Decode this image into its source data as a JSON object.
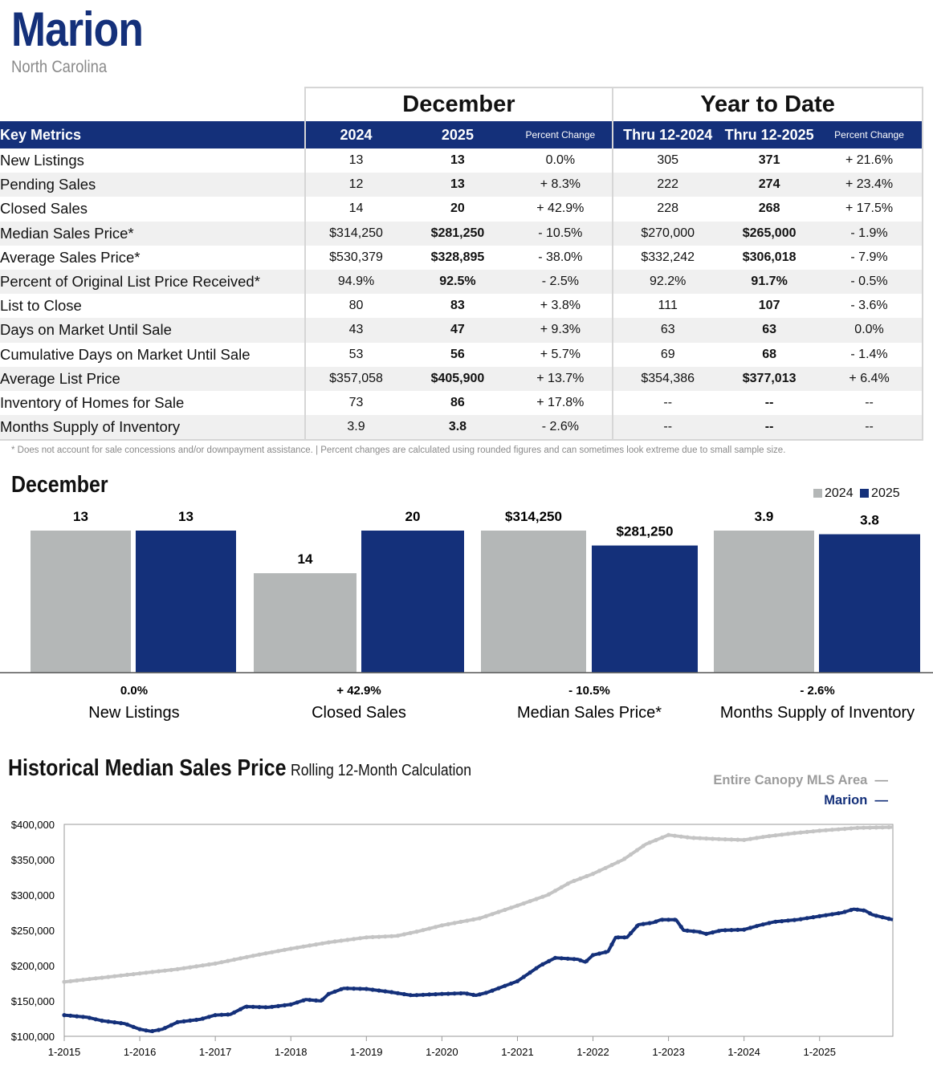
{
  "header": {
    "city": "Marion",
    "state": "North Carolina"
  },
  "table": {
    "group_december": "December",
    "group_ytd": "Year to Date",
    "col_key": "Key Metrics",
    "col_2024": "2024",
    "col_2025": "2025",
    "col_pct": "Percent Change",
    "col_thru2024": "Thru 12-2024",
    "col_thru2025": "Thru 12-2025",
    "col_pct_ytd": "Percent Change",
    "rows": [
      {
        "label": "New Listings",
        "d24": "13",
        "d25": "13",
        "dpc": "0.0%",
        "y24": "305",
        "y25": "371",
        "ypc": "+ 21.6%"
      },
      {
        "label": "Pending Sales",
        "d24": "12",
        "d25": "13",
        "dpc": "+ 8.3%",
        "y24": "222",
        "y25": "274",
        "ypc": "+ 23.4%"
      },
      {
        "label": "Closed Sales",
        "d24": "14",
        "d25": "20",
        "dpc": "+ 42.9%",
        "y24": "228",
        "y25": "268",
        "ypc": "+ 17.5%"
      },
      {
        "label": "Median Sales Price*",
        "d24": "$314,250",
        "d25": "$281,250",
        "dpc": "- 10.5%",
        "y24": "$270,000",
        "y25": "$265,000",
        "ypc": "- 1.9%"
      },
      {
        "label": "Average Sales Price*",
        "d24": "$530,379",
        "d25": "$328,895",
        "dpc": "- 38.0%",
        "y24": "$332,242",
        "y25": "$306,018",
        "ypc": "- 7.9%"
      },
      {
        "label": "Percent of Original List Price Received*",
        "d24": "94.9%",
        "d25": "92.5%",
        "dpc": "- 2.5%",
        "y24": "92.2%",
        "y25": "91.7%",
        "ypc": "- 0.5%"
      },
      {
        "label": "List to Close",
        "d24": "80",
        "d25": "83",
        "dpc": "+ 3.8%",
        "y24": "111",
        "y25": "107",
        "ypc": "- 3.6%"
      },
      {
        "label": "Days on Market Until Sale",
        "d24": "43",
        "d25": "47",
        "dpc": "+ 9.3%",
        "y24": "63",
        "y25": "63",
        "ypc": "0.0%"
      },
      {
        "label": "Cumulative Days on Market Until Sale",
        "d24": "53",
        "d25": "56",
        "dpc": "+ 5.7%",
        "y24": "69",
        "y25": "68",
        "ypc": "- 1.4%"
      },
      {
        "label": "Average List Price",
        "d24": "$357,058",
        "d25": "$405,900",
        "dpc": "+ 13.7%",
        "y24": "$354,386",
        "y25": "$377,013",
        "ypc": "+ 6.4%"
      },
      {
        "label": "Inventory of Homes for Sale",
        "d24": "73",
        "d25": "86",
        "dpc": "+ 17.8%",
        "y24": "--",
        "y25": "--",
        "ypc": "--"
      },
      {
        "label": "Months Supply of Inventory",
        "d24": "3.9",
        "d25": "3.8",
        "dpc": "- 2.6%",
        "y24": "--",
        "y25": "--",
        "ypc": "--"
      }
    ],
    "footnote": "* Does not account for sale concessions and/or downpayment assistance.  |  Percent changes are calculated using rounded figures and can sometimes look extreme due to small sample size."
  },
  "colors": {
    "navy": "#14307a",
    "gray": "#b4b7b7",
    "canopy": "#c4c4c4"
  },
  "chart_data": [
    {
      "type": "bar",
      "title": "December",
      "legend": [
        "2024",
        "2025"
      ],
      "groups": [
        {
          "name": "New Listings",
          "pct": "0.0%",
          "v2024": 13,
          "v2025": 13,
          "l2024": "13",
          "l2025": "13",
          "max": 13
        },
        {
          "name": "Closed Sales",
          "pct": "+ 42.9%",
          "v2024": 14,
          "v2025": 20,
          "l2024": "14",
          "l2025": "20",
          "max": 20
        },
        {
          "name": "Median Sales Price*",
          "pct": "- 10.5%",
          "v2024": 314250,
          "v2025": 281250,
          "l2024": "$314,250",
          "l2025": "$281,250",
          "max": 314250
        },
        {
          "name": "Months Supply of Inventory",
          "pct": "- 2.6%",
          "v2024": 3.9,
          "v2025": 3.8,
          "l2024": "3.9",
          "l2025": "3.8",
          "max": 3.9
        }
      ]
    },
    {
      "type": "line",
      "title": "Historical Median Sales Price",
      "subtitle": "Rolling 12-Month Calculation",
      "ylim": [
        100000,
        400000
      ],
      "yticks": [
        100000,
        150000,
        200000,
        250000,
        300000,
        350000,
        400000
      ],
      "ytick_labels": [
        "$100,000",
        "$150,000",
        "$200,000",
        "$250,000",
        "$300,000",
        "$350,000",
        "$400,000"
      ],
      "xlim": [
        2015,
        2025.97
      ],
      "xticks": [
        2015,
        2016,
        2017,
        2018,
        2019,
        2020,
        2021,
        2022,
        2023,
        2024,
        2025
      ],
      "xtick_labels": [
        "1-2015",
        "1-2016",
        "1-2017",
        "1-2018",
        "1-2019",
        "1-2020",
        "1-2021",
        "1-2022",
        "1-2023",
        "1-2024",
        "1-2025"
      ],
      "series": [
        {
          "name": "Entire Canopy MLS Area",
          "points": [
            [
              2015,
              177000
            ],
            [
              2015.5,
              183000
            ],
            [
              2016,
              189000
            ],
            [
              2016.5,
              195000
            ],
            [
              2017,
              203000
            ],
            [
              2017.5,
              214000
            ],
            [
              2018,
              224000
            ],
            [
              2018.5,
              233000
            ],
            [
              2019,
              240000
            ],
            [
              2019.4,
              242000
            ],
            [
              2019.7,
              249000
            ],
            [
              2020,
              257000
            ],
            [
              2020.5,
              267000
            ],
            [
              2021,
              285000
            ],
            [
              2021.4,
              300000
            ],
            [
              2021.7,
              318000
            ],
            [
              2022,
              330000
            ],
            [
              2022.4,
              350000
            ],
            [
              2022.7,
              372000
            ],
            [
              2023,
              385000
            ],
            [
              2023.3,
              381000
            ],
            [
              2023.7,
              379000
            ],
            [
              2024,
              378000
            ],
            [
              2024.3,
              383000
            ],
            [
              2024.7,
              388000
            ],
            [
              2025,
              391000
            ],
            [
              2025.5,
              395000
            ],
            [
              2025.97,
              396000
            ]
          ]
        },
        {
          "name": "Marion",
          "points": [
            [
              2015,
              130000
            ],
            [
              2015.3,
              127000
            ],
            [
              2015.5,
              122000
            ],
            [
              2015.8,
              118000
            ],
            [
              2016,
              110000
            ],
            [
              2016.15,
              107000
            ],
            [
              2016.3,
              110000
            ],
            [
              2016.5,
              120000
            ],
            [
              2016.8,
              124000
            ],
            [
              2017,
              130000
            ],
            [
              2017.2,
              131000
            ],
            [
              2017.4,
              142000
            ],
            [
              2017.7,
              141000
            ],
            [
              2018,
              145000
            ],
            [
              2018.2,
              152000
            ],
            [
              2018.4,
              150000
            ],
            [
              2018.5,
              160000
            ],
            [
              2018.7,
              168000
            ],
            [
              2019,
              167000
            ],
            [
              2019.3,
              163000
            ],
            [
              2019.6,
              158000
            ],
            [
              2020,
              160000
            ],
            [
              2020.3,
              161000
            ],
            [
              2020.45,
              158000
            ],
            [
              2020.6,
              162000
            ],
            [
              2020.8,
              170000
            ],
            [
              2021,
              178000
            ],
            [
              2021.3,
              200000
            ],
            [
              2021.5,
              211000
            ],
            [
              2021.8,
              209000
            ],
            [
              2021.9,
              205000
            ],
            [
              2022,
              215000
            ],
            [
              2022.2,
              220000
            ],
            [
              2022.3,
              240000
            ],
            [
              2022.45,
              240000
            ],
            [
              2022.6,
              258000
            ],
            [
              2022.8,
              261000
            ],
            [
              2022.9,
              265000
            ],
            [
              2023.1,
              265000
            ],
            [
              2023.2,
              250000
            ],
            [
              2023.4,
              248000
            ],
            [
              2023.5,
              245000
            ],
            [
              2023.7,
              250000
            ],
            [
              2024,
              251000
            ],
            [
              2024.2,
              257000
            ],
            [
              2024.4,
              262000
            ],
            [
              2024.7,
              265000
            ],
            [
              2025,
              270000
            ],
            [
              2025.3,
              275000
            ],
            [
              2025.45,
              280000
            ],
            [
              2025.6,
              278000
            ],
            [
              2025.7,
              272000
            ],
            [
              2025.97,
              265000
            ]
          ]
        }
      ]
    }
  ]
}
